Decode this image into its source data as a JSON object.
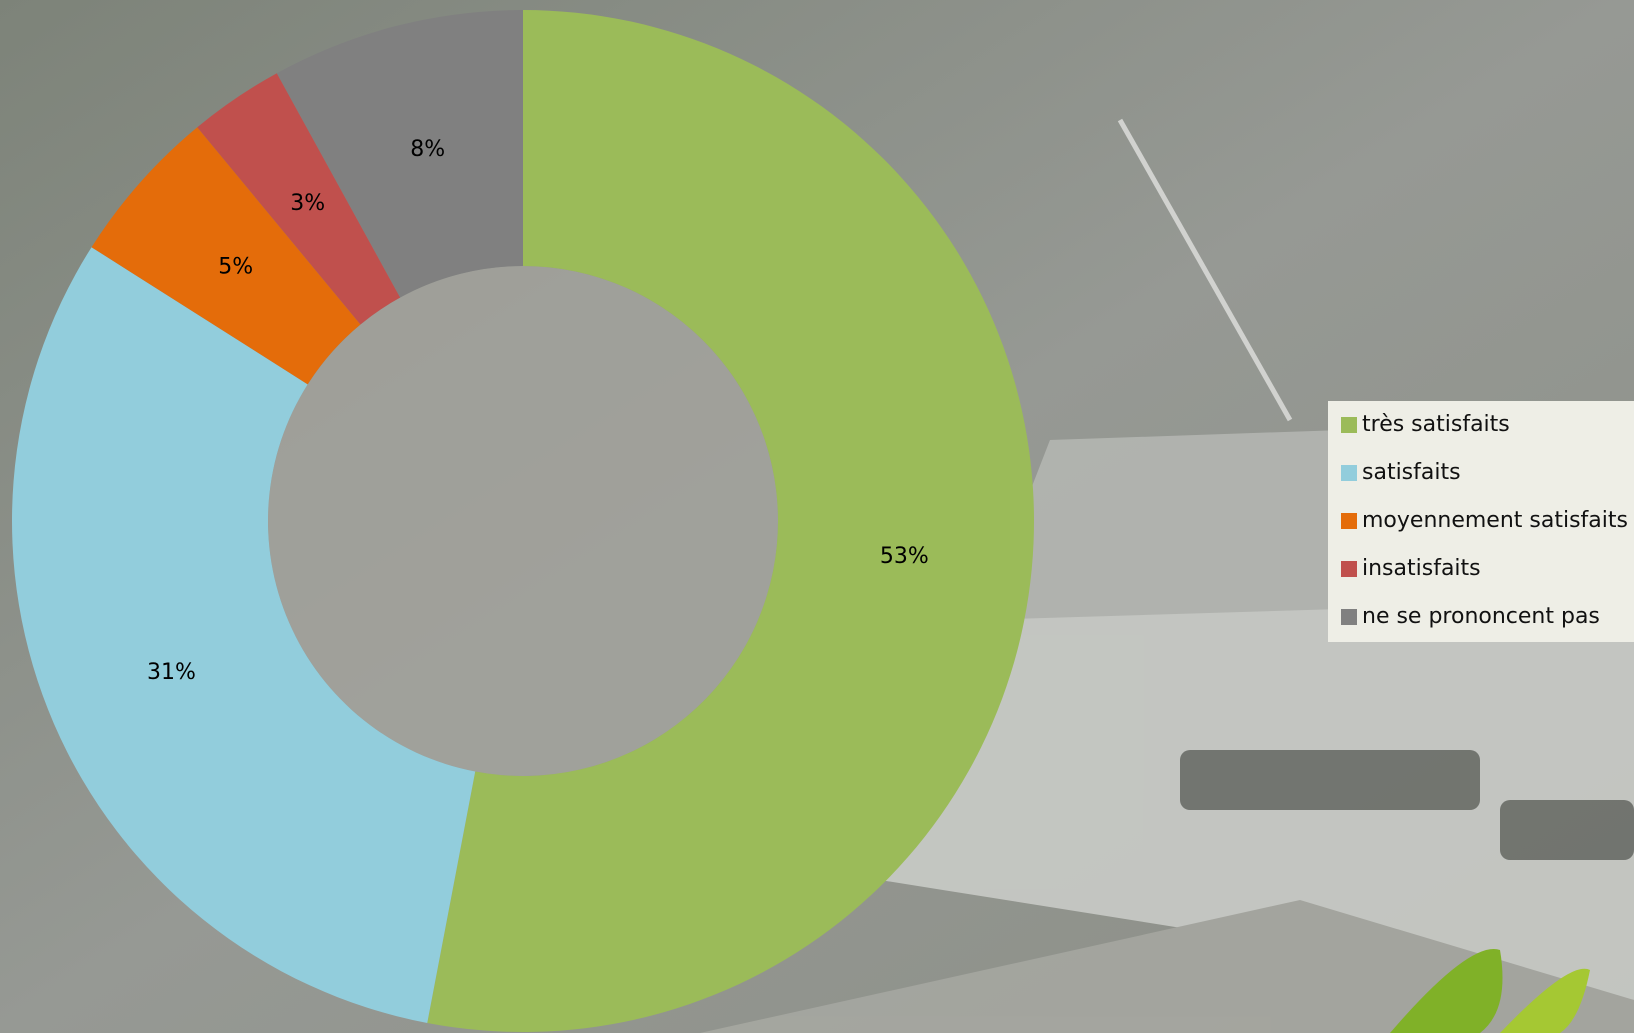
{
  "chart_data": {
    "type": "donut",
    "categories": [
      "très satisfaits",
      "satisfaits",
      "moyennement satisfaits",
      "insatisfaits",
      "ne se prononcent pas"
    ],
    "values": [
      53,
      31,
      5,
      3,
      8
    ],
    "value_labels": [
      "53%",
      "31%",
      "5%",
      "3%",
      "8%"
    ],
    "colors": [
      "#9bbb59",
      "#92cddc",
      "#e46c0a",
      "#c0504d",
      "#808080"
    ],
    "legend": "right"
  }
}
